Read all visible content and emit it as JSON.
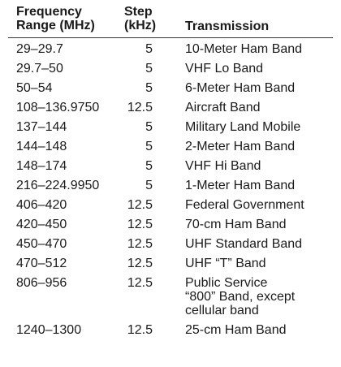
{
  "headers": {
    "frequency": "Frequency\nRange (MHz)",
    "step": "Step\n(kHz)",
    "transmission": "Transmission"
  },
  "rows": [
    {
      "frequency": "29–29.7",
      "step": "5",
      "transmission": "10-Meter Ham Band"
    },
    {
      "frequency": "29.7–50",
      "step": "5",
      "transmission": "VHF Lo Band"
    },
    {
      "frequency": "50–54",
      "step": "5",
      "transmission": "6-Meter Ham Band"
    },
    {
      "frequency": "108–136.9750",
      "step": "12.5",
      "transmission": "Aircraft Band"
    },
    {
      "frequency": "137–144",
      "step": "5",
      "transmission": "Military Land Mobile"
    },
    {
      "frequency": "144–148",
      "step": "5",
      "transmission": "2-Meter Ham Band"
    },
    {
      "frequency": "148–174",
      "step": "5",
      "transmission": "VHF Hi Band"
    },
    {
      "frequency": "216–224.9950",
      "step": "5",
      "transmission": "1-Meter Ham Band"
    },
    {
      "frequency": "406–420",
      "step": "12.5",
      "transmission": "Federal Government"
    },
    {
      "frequency": "420–450",
      "step": "12.5",
      "transmission": "70-cm Ham Band"
    },
    {
      "frequency": "450–470",
      "step": "12.5",
      "transmission": "UHF Standard Band"
    },
    {
      "frequency": "470–512",
      "step": "12.5",
      "transmission": "UHF “T” Band"
    },
    {
      "frequency": "806–956",
      "step": "12.5",
      "transmission": "Public Service\n“800” Band, except\ncellular band"
    },
    {
      "frequency": "1240–1300",
      "step": "12.5",
      "transmission": "25-cm Ham Band"
    }
  ]
}
